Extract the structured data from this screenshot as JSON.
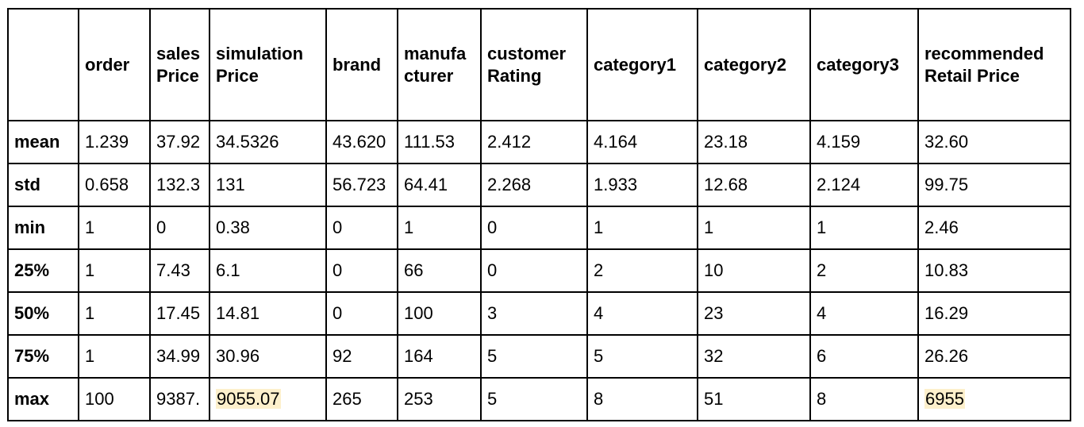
{
  "table": {
    "columns": [
      {
        "key": "corner",
        "label": ""
      },
      {
        "key": "order",
        "label": "order"
      },
      {
        "key": "salesPrice",
        "label": "sales Price"
      },
      {
        "key": "simulationPrice",
        "label": "simulation Price"
      },
      {
        "key": "brand",
        "label": "brand"
      },
      {
        "key": "manufacturer",
        "label": "manufa cturer"
      },
      {
        "key": "customerRating",
        "label": "customer Rating"
      },
      {
        "key": "category1",
        "label": "category1"
      },
      {
        "key": "category2",
        "label": "category2"
      },
      {
        "key": "category3",
        "label": "category3"
      },
      {
        "key": "recommendedRetailPrice",
        "label": "recommended Retail Price"
      }
    ],
    "rows": [
      {
        "label": "mean",
        "cells": [
          "1.239",
          "37.92",
          "34.5326",
          "43.620",
          "111.53",
          "2.412",
          "4.164",
          "23.18",
          "4.159",
          "32.60"
        ]
      },
      {
        "label": "std",
        "cells": [
          "0.658",
          "132.3",
          "131",
          "56.723",
          "64.41",
          "2.268",
          "1.933",
          "12.68",
          "2.124",
          "99.75"
        ]
      },
      {
        "label": "min",
        "cells": [
          "1",
          "0",
          "0.38",
          "0",
          "1",
          "0",
          "1",
          "1",
          "1",
          "2.46"
        ]
      },
      {
        "label": "25%",
        "cells": [
          "1",
          "7.43",
          "6.1",
          "0",
          "66",
          "0",
          "2",
          "10",
          "2",
          "10.83"
        ]
      },
      {
        "label": "50%",
        "cells": [
          "1",
          "17.45",
          "14.81",
          "0",
          "100",
          "3",
          "4",
          "23",
          "4",
          "16.29"
        ]
      },
      {
        "label": "75%",
        "cells": [
          "1",
          "34.99",
          "30.96",
          "92",
          "164",
          "5",
          "5",
          "32",
          "6",
          "26.26"
        ]
      },
      {
        "label": "max",
        "cells": [
          "100",
          "9387.",
          "9055.07",
          "265",
          "253",
          "5",
          "8",
          "51",
          "8",
          "6955"
        ]
      }
    ],
    "highlight_color": "#fdf0cc",
    "highlighted_cells": [
      {
        "row": 6,
        "col": 2
      },
      {
        "row": 6,
        "col": 9
      }
    ]
  }
}
